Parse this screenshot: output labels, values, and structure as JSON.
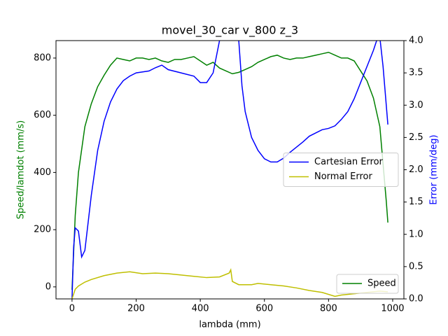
{
  "chart_data": {
    "type": "line",
    "title": "movel_30_car v_800 z_3",
    "xlabel": "lambda (mm)",
    "ylabel": "Speed/lamdot (mm/s)",
    "ylabel_color": "#008000",
    "y2label": "Error (mm/deg)",
    "y2label_color": "#0000ff",
    "xlim": [
      -50,
      1035
    ],
    "xticks": [
      0,
      200,
      400,
      600,
      800,
      1000
    ],
    "ylim": [
      -42,
      861
    ],
    "yticks": [
      0,
      200,
      400,
      600,
      800
    ],
    "y2lim": [
      0,
      4
    ],
    "y2ticks": [
      {
        "value": 0,
        "label": "0.0"
      },
      {
        "value": 0.5,
        "label": "0.5"
      },
      {
        "value": 1,
        "label": "1.0"
      },
      {
        "value": 1.5,
        "label": "1.5"
      },
      {
        "value": 2,
        "label": "2.0"
      },
      {
        "value": 2.5,
        "label": "2.5"
      },
      {
        "value": 3,
        "label": "3.0"
      },
      {
        "value": 3.5,
        "label": "3.5"
      },
      {
        "value": 4,
        "label": "4.0"
      }
    ],
    "legend_loc": {
      "y": "lower right",
      "y2": "center right"
    },
    "series": [
      {
        "name": "Speed",
        "color": "#008000",
        "axis": "y",
        "x": [
          0,
          10,
          20,
          40,
          60,
          80,
          100,
          120,
          140,
          160,
          180,
          200,
          220,
          240,
          260,
          280,
          300,
          320,
          340,
          360,
          380,
          400,
          420,
          440,
          460,
          480,
          500,
          520,
          540,
          560,
          580,
          600,
          620,
          640,
          660,
          680,
          700,
          720,
          740,
          760,
          780,
          800,
          820,
          840,
          860,
          880,
          900,
          920,
          940,
          960,
          980,
          985
        ],
        "values": [
          -10,
          250,
          400,
          560,
          640,
          700,
          740,
          775,
          800,
          795,
          790,
          800,
          800,
          795,
          800,
          790,
          785,
          795,
          795,
          800,
          805,
          790,
          775,
          785,
          765,
          755,
          745,
          750,
          760,
          770,
          785,
          795,
          805,
          810,
          800,
          795,
          800,
          800,
          805,
          810,
          815,
          820,
          810,
          800,
          800,
          790,
          755,
          720,
          660,
          560,
          300,
          225
        ]
      },
      {
        "name": "Cartesian Error",
        "color": "#0000ff",
        "axis": "y2",
        "x": [
          0,
          5,
          10,
          20,
          30,
          40,
          60,
          80,
          100,
          120,
          140,
          160,
          180,
          200,
          240,
          260,
          280,
          300,
          340,
          380,
          400,
          420,
          440,
          460,
          480,
          510,
          520,
          530,
          540,
          560,
          580,
          600,
          620,
          640,
          660,
          680,
          700,
          720,
          740,
          760,
          780,
          800,
          820,
          840,
          860,
          880,
          900,
          920,
          940,
          950,
          960,
          970,
          985
        ],
        "values": [
          0,
          0.8,
          1.1,
          1.05,
          0.65,
          0.75,
          1.6,
          2.3,
          2.75,
          3.05,
          3.25,
          3.38,
          3.45,
          3.5,
          3.53,
          3.58,
          3.62,
          3.55,
          3.5,
          3.45,
          3.35,
          3.35,
          3.5,
          4.0,
          4.6,
          4.5,
          4.0,
          3.3,
          2.9,
          2.5,
          2.3,
          2.17,
          2.12,
          2.12,
          2.18,
          2.27,
          2.35,
          2.43,
          2.52,
          2.57,
          2.62,
          2.64,
          2.68,
          2.78,
          2.9,
          3.1,
          3.35,
          3.6,
          3.85,
          4.0,
          4.05,
          3.6,
          2.7
        ]
      },
      {
        "name": "Normal Error",
        "color": "#bfbf00",
        "axis": "y2",
        "x": [
          0,
          10,
          20,
          40,
          60,
          100,
          140,
          180,
          220,
          260,
          300,
          340,
          380,
          420,
          460,
          490,
          495,
          500,
          520,
          560,
          580,
          620,
          660,
          700,
          740,
          780,
          820,
          840,
          880,
          920,
          960,
          985
        ],
        "values": [
          0,
          0.15,
          0.2,
          0.26,
          0.3,
          0.36,
          0.4,
          0.42,
          0.39,
          0.4,
          0.39,
          0.37,
          0.35,
          0.33,
          0.34,
          0.4,
          0.45,
          0.27,
          0.22,
          0.22,
          0.24,
          0.22,
          0.2,
          0.17,
          0.13,
          0.1,
          0.04,
          0.06,
          0.08,
          0.1,
          0.12,
          0.11
        ]
      }
    ]
  }
}
